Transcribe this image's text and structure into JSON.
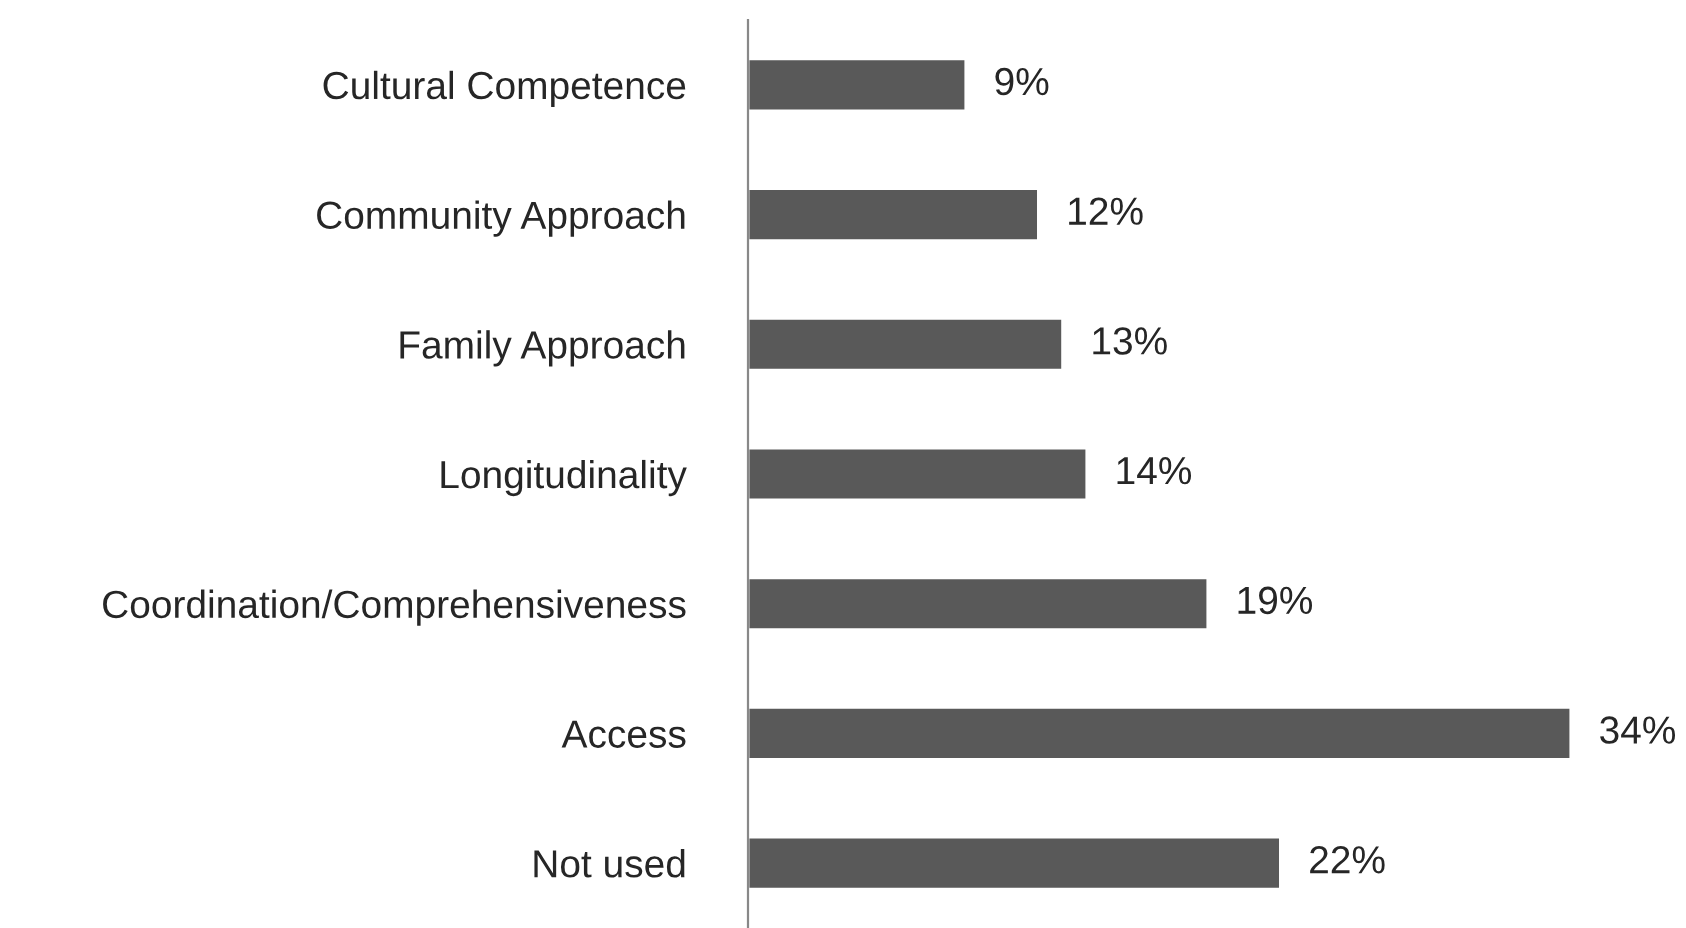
{
  "chart_data": {
    "type": "bar",
    "orientation": "horizontal",
    "categories": [
      "Cultural Competence",
      "Community Approach",
      "Family Approach",
      "Longitudinality",
      "Coordination/Comprehensiveness",
      "Access",
      "Not used"
    ],
    "values": [
      9,
      12,
      13,
      14,
      19,
      34,
      22
    ],
    "value_labels": [
      "9%",
      "12%",
      "13%",
      "14%",
      "19%",
      "34%",
      "22%"
    ],
    "color": "#595959",
    "grid": false,
    "legend": false
  }
}
